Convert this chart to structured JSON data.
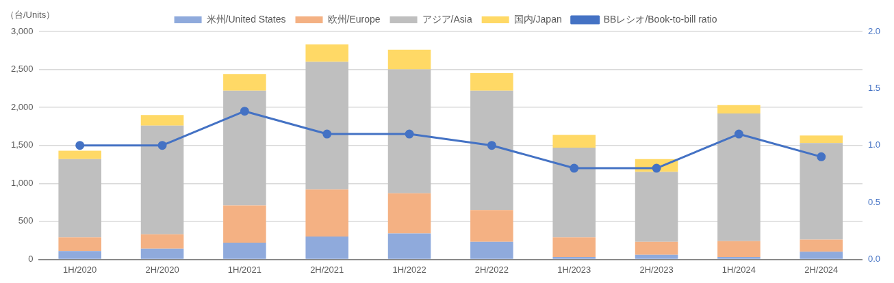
{
  "chart_data": {
    "type": "bar",
    "stacked": true,
    "ylabel": "（台/Units）",
    "legend": "top",
    "grid": "y",
    "categories": [
      "1H/2020",
      "2H/2020",
      "1H/2021",
      "2H/2021",
      "1H/2022",
      "2H/2022",
      "1H/2023",
      "2H/2023",
      "1H/2024",
      "2H/2024"
    ],
    "series": [
      {
        "name": "米州/United States",
        "color": "#8faadc",
        "values": [
          110,
          140,
          220,
          300,
          340,
          230,
          30,
          60,
          30,
          100
        ]
      },
      {
        "name": "欧州/Europe",
        "color": "#f4b183",
        "values": [
          180,
          190,
          490,
          620,
          530,
          420,
          260,
          170,
          210,
          160
        ]
      },
      {
        "name": "アジア/Asia",
        "color": "#bfbfbf",
        "values": [
          1030,
          1430,
          1510,
          1680,
          1630,
          1570,
          1180,
          920,
          1680,
          1270
        ]
      },
      {
        "name": "国内/Japan",
        "color": "#ffd966",
        "values": [
          110,
          140,
          220,
          230,
          260,
          230,
          170,
          170,
          110,
          100
        ]
      },
      {
        "name": "BBレシオ/Book-to-bill ratio",
        "type": "line",
        "axis": "y2",
        "color": "#4472c4",
        "marker": "circle",
        "values": [
          1.0,
          1.0,
          1.3,
          1.1,
          1.1,
          1.0,
          0.8,
          0.8,
          1.1,
          0.9
        ]
      }
    ],
    "ylim": [
      0,
      3000
    ],
    "yticks": [
      0,
      {
        "value": 500,
        "label": "500"
      },
      {
        "value": 1000,
        "label": "1,000"
      },
      {
        "value": 1500,
        "label": "1,500"
      },
      {
        "value": 2000,
        "label": "2,000"
      },
      {
        "value": 2500,
        "label": "2,500"
      },
      {
        "value": 3000,
        "label": "3,000"
      }
    ],
    "y2lim": [
      0,
      2
    ],
    "y2ticks": [
      {
        "value": 0,
        "label": "0.0"
      },
      {
        "value": 0.5,
        "label": "0.5"
      },
      {
        "value": 1,
        "label": "1.0"
      },
      {
        "value": 1.5,
        "label": "1.5"
      },
      {
        "value": 2,
        "label": "2.0"
      }
    ]
  }
}
